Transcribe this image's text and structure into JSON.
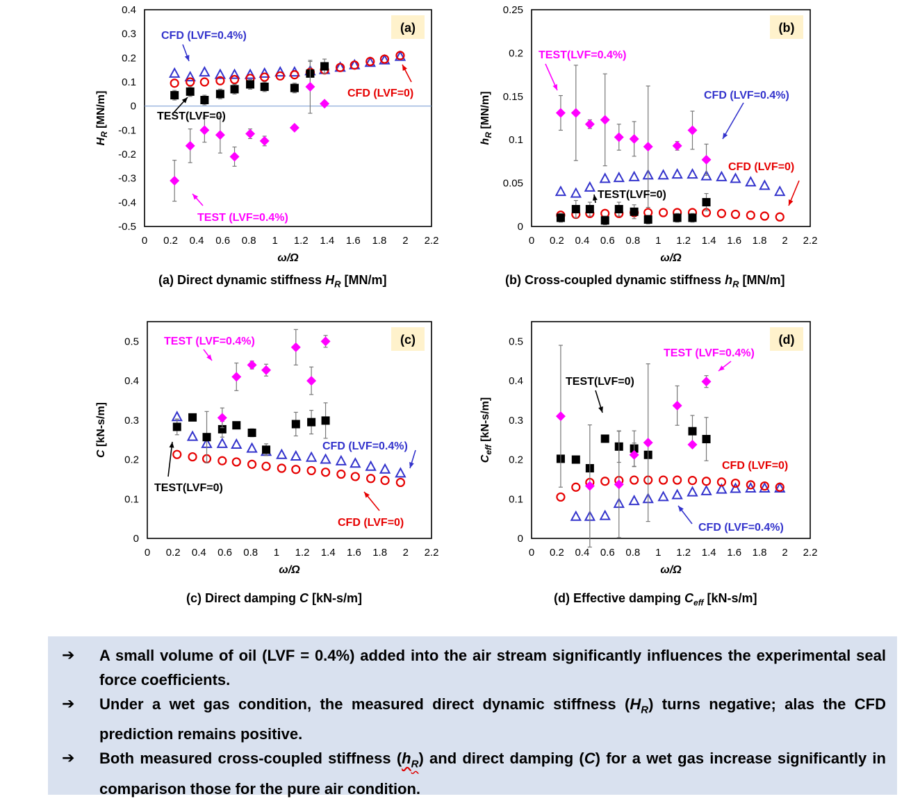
{
  "chart_data": [
    {
      "type": "scatter",
      "panel_label": "(a)",
      "caption": [
        "(a) Direct dynamic stiffness ",
        "H",
        "R",
        " [MN/m]"
      ],
      "xlabel": "ω/Ω",
      "ylabel": [
        "H",
        "R",
        " [MN/m]"
      ],
      "xlim": [
        0,
        2.2
      ],
      "ylim": [
        -0.5,
        0.4
      ],
      "xticks": [
        "0",
        "0.2",
        "0.4",
        "0.6",
        "0.8",
        "1",
        "1.2",
        "1.4",
        "1.6",
        "1.8",
        "2",
        "2.2"
      ],
      "yticks": [
        "0.4",
        "0.3",
        "0.2",
        "0.1",
        "0",
        "-0.1",
        "-0.2",
        "-0.3",
        "-0.4",
        "-0.5"
      ],
      "zero_line": true,
      "series": [
        {
          "name": "CFD (LVF=0.4%)",
          "marker": "triangle",
          "color": "#3333cc",
          "x": [
            0.23,
            0.35,
            0.46,
            0.58,
            0.69,
            0.81,
            0.92,
            1.04,
            1.15,
            1.27,
            1.38,
            1.5,
            1.61,
            1.73,
            1.84,
            1.96
          ],
          "y": [
            0.135,
            0.12,
            0.14,
            0.13,
            0.13,
            0.13,
            0.135,
            0.14,
            0.14,
            0.145,
            0.15,
            0.16,
            0.17,
            0.18,
            0.19,
            0.205
          ]
        },
        {
          "name": "CFD (LVF=0)",
          "marker": "circle",
          "color": "#e60000",
          "x": [
            0.23,
            0.35,
            0.46,
            0.58,
            0.69,
            0.81,
            0.92,
            1.04,
            1.15,
            1.27,
            1.38,
            1.5,
            1.61,
            1.73,
            1.84,
            1.96
          ],
          "y": [
            0.095,
            0.1,
            0.1,
            0.105,
            0.11,
            0.115,
            0.12,
            0.125,
            0.13,
            0.14,
            0.15,
            0.16,
            0.17,
            0.185,
            0.195,
            0.21
          ]
        },
        {
          "name": "TEST(LVF=0)",
          "marker": "square",
          "color": "#000000",
          "x": [
            0.23,
            0.35,
            0.46,
            0.58,
            0.69,
            0.81,
            0.92,
            1.15,
            1.27,
            1.38
          ],
          "y": [
            0.045,
            0.06,
            0.025,
            0.05,
            0.07,
            0.09,
            0.08,
            0.075,
            0.135,
            0.165
          ],
          "err": [
            0.02,
            0.02,
            0.02,
            0.02,
            0.02,
            0.02,
            0.02,
            0.02,
            0.05,
            0.03
          ]
        },
        {
          "name": "TEST (LVF=0.4%)",
          "marker": "diamond",
          "color": "#ff00ff",
          "x": [
            0.23,
            0.35,
            0.46,
            0.58,
            0.69,
            0.81,
            0.92,
            1.15,
            1.27,
            1.38
          ],
          "y": [
            -0.31,
            -0.165,
            -0.1,
            -0.12,
            -0.21,
            -0.115,
            -0.145,
            -0.09,
            0.08,
            0.01
          ],
          "err": [
            0.085,
            0.07,
            0.05,
            0.075,
            0.04,
            0.02,
            0.02,
            0.01,
            0.11,
            0.01
          ]
        }
      ],
      "annotations": [
        {
          "text": "CFD (LVF=0.4%)",
          "color": "#3333cc"
        },
        {
          "text": "CFD (LVF=0)",
          "color": "#e60000"
        },
        {
          "text": "TEST(LVF=0)",
          "color": "#000000"
        },
        {
          "text": "TEST (LVF=0.4%)",
          "color": "#ff00ff"
        }
      ]
    },
    {
      "type": "scatter",
      "panel_label": "(b)",
      "caption": [
        "(b) Cross-coupled dynamic stiffness ",
        "h",
        "R",
        " [MN/m]"
      ],
      "xlabel": "ω/Ω",
      "ylabel": [
        "h",
        "R",
        " [MN/m]"
      ],
      "xlim": [
        0,
        2.2
      ],
      "ylim": [
        0,
        0.25
      ],
      "xticks": [
        "0",
        "0.2",
        "0.4",
        "0.6",
        "0.8",
        "1",
        "1.2",
        "1.4",
        "1.6",
        "1.8",
        "2",
        "2.2"
      ],
      "yticks": [
        "0.25",
        "0.2",
        "0.15",
        "0.1",
        "0.05",
        "0"
      ],
      "zero_line": false,
      "series": [
        {
          "name": "CFD (LVF=0.4%)",
          "marker": "triangle",
          "color": "#3333cc",
          "x": [
            0.23,
            0.35,
            0.46,
            0.58,
            0.69,
            0.81,
            0.92,
            1.04,
            1.15,
            1.27,
            1.38,
            1.5,
            1.61,
            1.73,
            1.84,
            1.96
          ],
          "y": [
            0.04,
            0.038,
            0.045,
            0.055,
            0.056,
            0.057,
            0.059,
            0.059,
            0.06,
            0.06,
            0.058,
            0.057,
            0.055,
            0.051,
            0.047,
            0.04
          ]
        },
        {
          "name": "CFD (LVF=0)",
          "marker": "circle",
          "color": "#e60000",
          "x": [
            0.23,
            0.35,
            0.46,
            0.58,
            0.69,
            0.81,
            0.92,
            1.04,
            1.15,
            1.27,
            1.38,
            1.5,
            1.61,
            1.73,
            1.84,
            1.96
          ],
          "y": [
            0.013,
            0.014,
            0.015,
            0.015,
            0.015,
            0.016,
            0.016,
            0.016,
            0.016,
            0.016,
            0.016,
            0.015,
            0.014,
            0.013,
            0.012,
            0.011
          ]
        },
        {
          "name": "TEST(LVF=0)",
          "marker": "square",
          "color": "#000000",
          "x": [
            0.23,
            0.35,
            0.46,
            0.58,
            0.69,
            0.81,
            0.92,
            1.15,
            1.27,
            1.38
          ],
          "y": [
            0.01,
            0.02,
            0.02,
            0.007,
            0.02,
            0.017,
            0.008,
            0.01,
            0.01,
            0.028
          ],
          "err": [
            0.005,
            0.01,
            0.008,
            0.005,
            0.008,
            0.008,
            0.005,
            0.005,
            0.005,
            0.01
          ]
        },
        {
          "name": "TEST(LVF=0.4%)",
          "marker": "diamond",
          "color": "#ff00ff",
          "x": [
            0.23,
            0.35,
            0.46,
            0.58,
            0.69,
            0.81,
            0.92,
            1.15,
            1.27,
            1.38
          ],
          "y": [
            0.131,
            0.131,
            0.118,
            0.123,
            0.103,
            0.101,
            0.092,
            0.093,
            0.111,
            0.077
          ],
          "err": [
            0.02,
            0.055,
            0.005,
            0.053,
            0.015,
            0.02,
            0.07,
            0.005,
            0.022,
            0.018
          ]
        }
      ],
      "annotations": [
        {
          "text": "TEST(LVF=0.4%)",
          "color": "#ff00ff"
        },
        {
          "text": "CFD (LVF=0.4%)",
          "color": "#3333cc"
        },
        {
          "text": "CFD (LVF=0)",
          "color": "#e60000"
        },
        {
          "text": "TEST(LVF=0)",
          "color": "#000000"
        }
      ]
    },
    {
      "type": "scatter",
      "panel_label": "(c)",
      "caption": [
        "(c) Direct damping ",
        "C",
        "",
        " [kN-s/m]"
      ],
      "xlabel": "ω/Ω",
      "ylabel": [
        "C",
        "",
        " [kN-s/m]"
      ],
      "xlim": [
        0,
        2.2
      ],
      "ylim": [
        0,
        0.55
      ],
      "xticks": [
        "0",
        "0.2",
        "0.4",
        "0.6",
        "0.8",
        "1",
        "1.2",
        "1.4",
        "1.6",
        "1.8",
        "2",
        "2.2"
      ],
      "yticks": [
        "0.5",
        "0.4",
        "0.3",
        "0.2",
        "0.1",
        "0"
      ],
      "zero_line": false,
      "series": [
        {
          "name": "CFD (LVF=0.4%)",
          "marker": "triangle",
          "color": "#3333cc",
          "x": [
            0.23,
            0.35,
            0.46,
            0.58,
            0.69,
            0.81,
            0.92,
            1.04,
            1.15,
            1.27,
            1.38,
            1.5,
            1.61,
            1.73,
            1.84,
            1.96
          ],
          "y": [
            0.308,
            0.258,
            0.24,
            0.24,
            0.238,
            0.228,
            0.22,
            0.212,
            0.208,
            0.205,
            0.2,
            0.196,
            0.19,
            0.182,
            0.175,
            0.165
          ]
        },
        {
          "name": "CFD (LVF=0)",
          "marker": "circle",
          "color": "#e60000",
          "x": [
            0.23,
            0.35,
            0.46,
            0.58,
            0.69,
            0.81,
            0.92,
            1.04,
            1.15,
            1.27,
            1.38,
            1.5,
            1.61,
            1.73,
            1.84,
            1.96
          ],
          "y": [
            0.213,
            0.207,
            0.202,
            0.197,
            0.194,
            0.188,
            0.183,
            0.178,
            0.175,
            0.172,
            0.168,
            0.163,
            0.157,
            0.152,
            0.147,
            0.142
          ]
        },
        {
          "name": "TEST(LVF=0)",
          "marker": "square",
          "color": "#000000",
          "x": [
            0.23,
            0.35,
            0.46,
            0.58,
            0.69,
            0.81,
            0.92,
            1.15,
            1.27,
            1.38
          ],
          "y": [
            0.283,
            0.307,
            0.257,
            0.277,
            0.287,
            0.268,
            0.225,
            0.29,
            0.295,
            0.299
          ],
          "err": [
            0.02,
            0.005,
            0.065,
            0.02,
            0.008,
            0.01,
            0.015,
            0.03,
            0.03,
            0.045
          ]
        },
        {
          "name": "TEST (LVF=0.4%)",
          "marker": "diamond",
          "color": "#ff00ff",
          "x": [
            0.58,
            0.69,
            0.81,
            0.92,
            1.15,
            1.27,
            1.38
          ],
          "y": [
            0.306,
            0.41,
            0.44,
            0.427,
            0.485,
            0.4,
            0.5
          ],
          "err": [
            0.025,
            0.035,
            0.01,
            0.015,
            0.045,
            0.035,
            0.015
          ]
        }
      ],
      "annotations": [
        {
          "text": "TEST (LVF=0.4%)",
          "color": "#ff00ff"
        },
        {
          "text": "CFD (LVF=0.4%)",
          "color": "#3333cc"
        },
        {
          "text": "TEST(LVF=0)",
          "color": "#000000"
        },
        {
          "text": "CFD (LVF=0)",
          "color": "#e60000"
        }
      ]
    },
    {
      "type": "scatter",
      "panel_label": "(d)",
      "caption": [
        "(d) Effective damping ",
        "C",
        "eff",
        " [kN-s/m]"
      ],
      "xlabel": "ω/Ω",
      "ylabel": [
        "C",
        "eff",
        " [kN-s/m]"
      ],
      "xlim": [
        0,
        2.2
      ],
      "ylim": [
        0,
        0.55
      ],
      "xticks": [
        "0",
        "0.2",
        "0.4",
        "0.6",
        "0.8",
        "1",
        "1.2",
        "1.4",
        "1.6",
        "1.8",
        "2",
        "2.2"
      ],
      "yticks": [
        "0.5",
        "0.4",
        "0.3",
        "0.2",
        "0.1",
        "0"
      ],
      "zero_line": false,
      "series": [
        {
          "name": "CFD (LVF=0.4%)",
          "marker": "triangle",
          "color": "#3333cc",
          "x": [
            0.35,
            0.46,
            0.58,
            0.69,
            0.81,
            0.92,
            1.04,
            1.15,
            1.27,
            1.38,
            1.5,
            1.61,
            1.73,
            1.84,
            1.96
          ],
          "y": [
            0.055,
            0.055,
            0.057,
            0.088,
            0.095,
            0.1,
            0.105,
            0.11,
            0.117,
            0.12,
            0.124,
            0.126,
            0.127,
            0.127,
            0.127
          ]
        },
        {
          "name": "CFD (LVF=0)",
          "marker": "circle",
          "color": "#e60000",
          "x": [
            0.23,
            0.35,
            0.46,
            0.58,
            0.69,
            0.81,
            0.92,
            1.04,
            1.15,
            1.27,
            1.38,
            1.5,
            1.61,
            1.73,
            1.84,
            1.96
          ],
          "y": [
            0.105,
            0.13,
            0.142,
            0.145,
            0.147,
            0.148,
            0.148,
            0.148,
            0.148,
            0.147,
            0.145,
            0.143,
            0.14,
            0.136,
            0.133,
            0.13
          ]
        },
        {
          "name": "TEST(LVF=0)",
          "marker": "square",
          "color": "#000000",
          "x": [
            0.23,
            0.35,
            0.46,
            0.58,
            0.69,
            0.81,
            0.92,
            1.27,
            1.38
          ],
          "y": [
            0.202,
            0.2,
            0.178,
            0.253,
            0.233,
            0.228,
            0.212,
            0.272,
            0.252
          ],
          "err": [
            0.005,
            0.005,
            0.005,
            0.005,
            0.04,
            0.045,
            0.005,
            0.04,
            0.055
          ]
        },
        {
          "name": "TEST (LVF=0.4%)",
          "marker": "diamond",
          "color": "#ff00ff",
          "x": [
            0.23,
            0.46,
            0.69,
            0.81,
            0.92,
            1.15,
            1.27,
            1.38
          ],
          "y": [
            0.31,
            0.133,
            0.137,
            0.212,
            0.243,
            0.337,
            0.238,
            0.398
          ],
          "err": [
            0.18,
            0.155,
            0.135,
            0.03,
            0.2,
            0.05,
            0.005,
            0.015
          ]
        }
      ],
      "annotations": [
        {
          "text": "TEST (LVF=0.4%)",
          "color": "#ff00ff"
        },
        {
          "text": "TEST(LVF=0)",
          "color": "#000000"
        },
        {
          "text": "CFD (LVF=0)",
          "color": "#e60000"
        },
        {
          "text": "CFD (LVF=0.4%)",
          "color": "#3333cc"
        }
      ]
    }
  ],
  "summary": {
    "bullet_symbol": "➔",
    "bullets": [
      {
        "parts": [
          [
            "A small volume of oil (LVF = 0.4%) added into the air stream significantly influences the experimental seal force coefficients.",
            ""
          ]
        ]
      },
      {
        "parts": [
          [
            "Under a wet gas condition, the measured direct dynamic stiffness (",
            ""
          ],
          [
            "H",
            "i"
          ],
          [
            "R",
            "sub"
          ],
          [
            ") turns negative; alas the CFD prediction remains positive.",
            ""
          ]
        ]
      },
      {
        "parts": [
          [
            "Both measured cross-coupled stiffness (",
            ""
          ],
          [
            "h",
            "iw"
          ],
          [
            "R",
            "subw"
          ],
          [
            ") and direct damping (",
            ""
          ],
          [
            "C",
            "i"
          ],
          [
            ") for a wet gas increase significantly in comparison those for the pure air condition.",
            ""
          ]
        ]
      }
    ]
  }
}
